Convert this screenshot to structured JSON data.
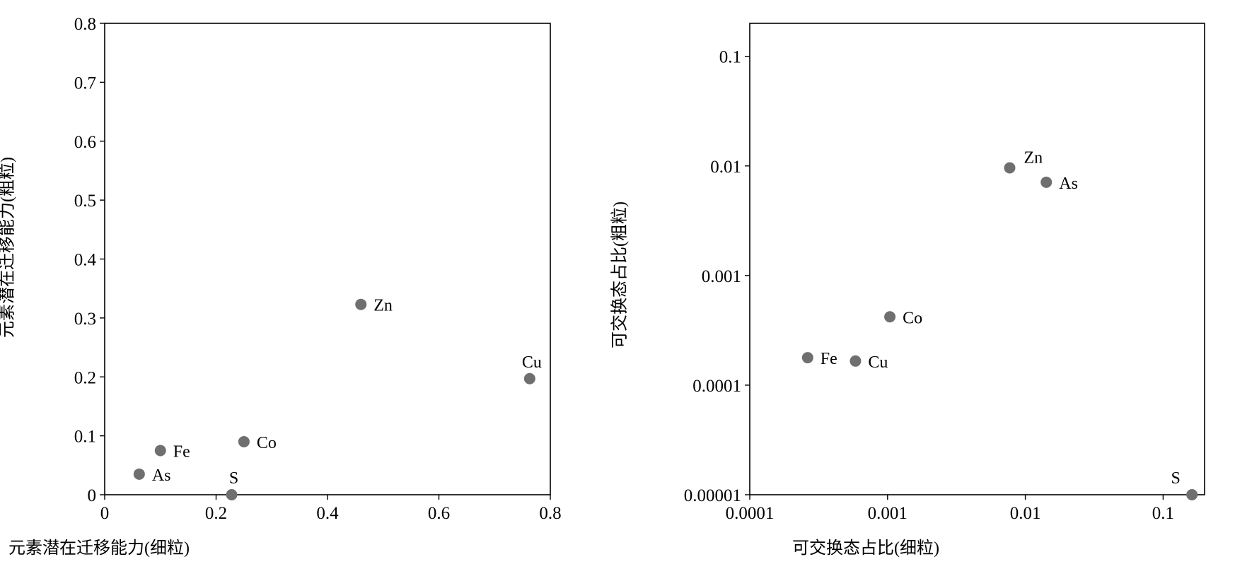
{
  "colors": {
    "point": "#6f6f6f",
    "axis": "#000000"
  },
  "chart_data": [
    {
      "type": "scatter",
      "xlabel": "元素潜在迁移能力(细粒)",
      "ylabel": "元素潜在迁移能力(粗粒)",
      "xscale": "linear",
      "yscale": "linear",
      "xlim": [
        0,
        0.8
      ],
      "ylim": [
        0,
        0.8
      ],
      "xticks": [
        0,
        0.2,
        0.4,
        0.6,
        0.8
      ],
      "xtick_labels": [
        "0",
        "0.2",
        "0.4",
        "0.6",
        "0.8"
      ],
      "yticks": [
        0,
        0.1,
        0.2,
        0.3,
        0.4,
        0.5,
        0.6,
        0.7,
        0.8
      ],
      "ytick_labels": [
        "0",
        "0.1",
        "0.2",
        "0.3",
        "0.4",
        "0.5",
        "0.6",
        "0.7",
        "0.8"
      ],
      "grid": false,
      "points": [
        {
          "label": "Zn",
          "x": 0.46,
          "y": 0.323,
          "label_pos": "right"
        },
        {
          "label": "Cu",
          "x": 0.763,
          "y": 0.197,
          "label_pos": "above"
        },
        {
          "label": "Co",
          "x": 0.25,
          "y": 0.09,
          "label_pos": "right"
        },
        {
          "label": "Fe",
          "x": 0.1,
          "y": 0.075,
          "label_pos": "right"
        },
        {
          "label": "As",
          "x": 0.062,
          "y": 0.035,
          "label_pos": "right"
        },
        {
          "label": "S",
          "x": 0.228,
          "y": 0.0,
          "label_pos": "above"
        }
      ]
    },
    {
      "type": "scatter",
      "xlabel": "可交换态占比(细粒)",
      "ylabel": "可交换态占比(粗粒)",
      "xscale": "log",
      "yscale": "log",
      "xlim": [
        0.0001,
        0.2
      ],
      "ylim": [
        1e-05,
        0.2
      ],
      "xticks": [
        0.0001,
        0.001,
        0.01,
        0.1
      ],
      "xtick_labels": [
        "0.0001",
        "0.001",
        "0.01",
        "0.1"
      ],
      "yticks": [
        1e-05,
        0.0001,
        0.001,
        0.01,
        0.1
      ],
      "ytick_labels": [
        "0.00001",
        "0.0001",
        "0.001",
        "0.01",
        "0.1"
      ],
      "grid": false,
      "points": [
        {
          "label": "Zn",
          "x": 0.0077,
          "y": 0.0096,
          "label_pos": "above-right"
        },
        {
          "label": "As",
          "x": 0.0142,
          "y": 0.0071,
          "label_pos": "right"
        },
        {
          "label": "Co",
          "x": 0.00104,
          "y": 0.00042,
          "label_pos": "right"
        },
        {
          "label": "Fe",
          "x": 0.000263,
          "y": 0.000178,
          "label_pos": "right"
        },
        {
          "label": "Cu",
          "x": 0.000585,
          "y": 0.000166,
          "label_pos": "right"
        },
        {
          "label": "S",
          "x": 0.162,
          "y": 1e-05,
          "label_pos": "above-left"
        }
      ]
    }
  ]
}
